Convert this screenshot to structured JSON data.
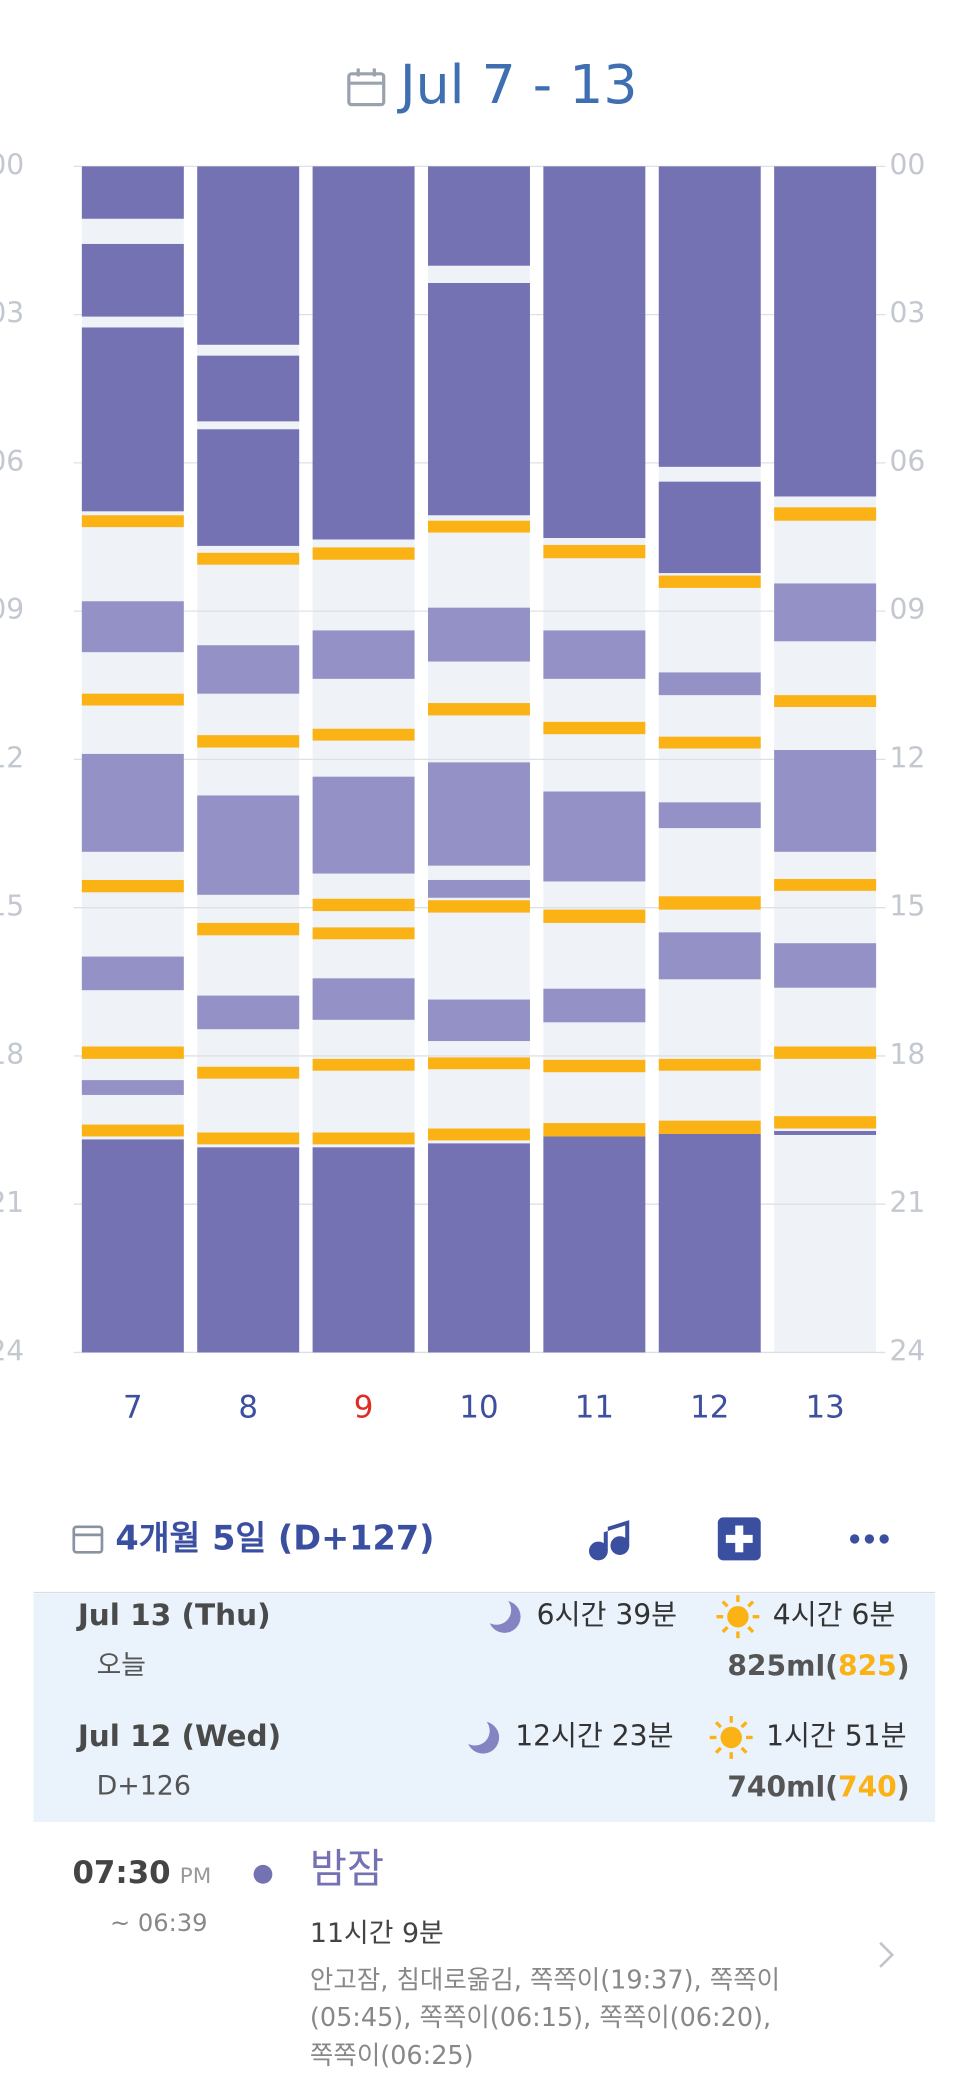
{
  "chart_data": {
    "type": "timeline",
    "title": "Jul 7 - 13",
    "categories": [
      "7",
      "8",
      "9",
      "10",
      "11",
      "12",
      "13"
    ],
    "category_colors": [
      "#3d4f9f",
      "#3d4f9f",
      "#e02b27",
      "#3d4f9f",
      "#3d4f9f",
      "#3d4f9f",
      "#3d4f9f"
    ],
    "ylim": [
      0,
      24
    ],
    "y_inverted": true,
    "yticks": [
      {
        "value": 0,
        "label": "00"
      },
      {
        "value": 3,
        "label": "03"
      },
      {
        "value": 6,
        "label": "06"
      },
      {
        "value": 9,
        "label": "09"
      },
      {
        "value": 12,
        "label": "12"
      },
      {
        "value": 15,
        "label": "15"
      },
      {
        "value": 18,
        "label": "18"
      },
      {
        "value": 21,
        "label": "21"
      },
      {
        "value": 24,
        "label": "24"
      }
    ],
    "grid": true,
    "colors": {
      "sleep": "#7472b3",
      "nap": "#9391c6",
      "feed": "#fbb214",
      "background": "#eff3f7"
    },
    "days": [
      {
        "sleep": [
          [
            0,
            1.06
          ],
          [
            1.57,
            3.04
          ],
          [
            3.26,
            6.98
          ],
          [
            19.69,
            24
          ]
        ],
        "nap": [
          [
            8.8,
            9.83
          ],
          [
            11.89,
            13.87
          ],
          [
            15.99,
            16.67
          ],
          [
            18.49,
            18.79
          ]
        ],
        "feed": [
          [
            7.06,
            7.3
          ],
          [
            10.67,
            10.91
          ],
          [
            14.44,
            14.69
          ],
          [
            17.81,
            18.06
          ],
          [
            19.39,
            19.63
          ]
        ]
      },
      {
        "sleep": [
          [
            0,
            3.61
          ],
          [
            3.83,
            5.16
          ],
          [
            5.32,
            7.68
          ],
          [
            19.85,
            24
          ]
        ],
        "nap": [
          [
            9.69,
            10.67
          ],
          [
            12.73,
            14.74
          ],
          [
            16.78,
            17.46
          ]
        ],
        "feed": [
          [
            7.82,
            8.06
          ],
          [
            11.51,
            11.76
          ],
          [
            15.31,
            15.56
          ],
          [
            18.22,
            18.46
          ],
          [
            19.55,
            19.79
          ]
        ]
      },
      {
        "sleep": [
          [
            0,
            7.55
          ],
          [
            19.85,
            24
          ]
        ],
        "nap": [
          [
            9.39,
            10.37
          ],
          [
            12.35,
            14.31
          ],
          [
            16.43,
            17.27
          ]
        ],
        "feed": [
          [
            7.71,
            7.96
          ],
          [
            11.38,
            11.62
          ],
          [
            14.82,
            15.07
          ],
          [
            15.4,
            15.64
          ],
          [
            18.06,
            18.3
          ],
          [
            19.55,
            19.79
          ]
        ]
      },
      {
        "sleep": [
          [
            0,
            2.01
          ],
          [
            2.36,
            7.06
          ],
          [
            19.77,
            24
          ]
        ],
        "nap": [
          [
            8.93,
            10.02
          ],
          [
            12.06,
            14.15
          ],
          [
            14.44,
            14.8
          ],
          [
            16.86,
            17.7
          ]
        ],
        "feed": [
          [
            7.17,
            7.41
          ],
          [
            10.86,
            11.11
          ],
          [
            14.85,
            15.1
          ],
          [
            18.03,
            18.27
          ],
          [
            19.47,
            19.71
          ]
        ]
      },
      {
        "sleep": [
          [
            0,
            7.52
          ],
          [
            19.63,
            24
          ]
        ],
        "nap": [
          [
            9.39,
            10.37
          ],
          [
            12.65,
            14.47
          ],
          [
            16.64,
            17.32
          ]
        ],
        "feed": [
          [
            7.66,
            7.93
          ],
          [
            11.24,
            11.49
          ],
          [
            15.04,
            15.31
          ],
          [
            18.08,
            18.33
          ],
          [
            19.36,
            19.63
          ]
        ]
      },
      {
        "sleep": [
          [
            0,
            6.08
          ],
          [
            6.38,
            8.23
          ],
          [
            19.58,
            24
          ]
        ],
        "nap": [
          [
            10.24,
            10.7
          ],
          [
            12.87,
            13.39
          ],
          [
            15.5,
            16.45
          ]
        ],
        "feed": [
          [
            8.28,
            8.53
          ],
          [
            11.54,
            11.78
          ],
          [
            14.77,
            15.04
          ],
          [
            18.06,
            18.3
          ],
          [
            19.31,
            19.58
          ]
        ]
      },
      {
        "sleep": [
          [
            0,
            6.68
          ],
          [
            19.52,
            19.6
          ]
        ],
        "nap": [
          [
            8.44,
            9.61
          ],
          [
            11.81,
            13.87
          ],
          [
            15.72,
            16.62
          ]
        ],
        "feed": [
          [
            6.9,
            7.17
          ],
          [
            10.7,
            10.94
          ],
          [
            14.42,
            14.66
          ],
          [
            17.81,
            18.06
          ],
          [
            19.22,
            19.47
          ]
        ]
      }
    ]
  },
  "summary_header": {
    "title": "4개월 5일 (D+127)"
  },
  "day_cards": [
    {
      "date": "Jul 13 (Thu)",
      "sub": "오늘",
      "night_sleep": "6시간 39분",
      "day_sleep": "4시간 6분",
      "total_parts": [
        "825ml(",
        "825",
        ")"
      ]
    },
    {
      "date": "Jul 12 (Wed)",
      "sub": "D+126",
      "night_sleep": "12시간 23분",
      "day_sleep": "1시간 51분",
      "total_parts": [
        "740ml(",
        "740",
        ")"
      ]
    }
  ],
  "entry": {
    "time": "07:30",
    "ampm": "PM",
    "end": "~ 06:39",
    "title": "밤잠",
    "duration": "11시간 9분",
    "notes": [
      "안고잠, 침대로옮김, 쪽쪽이(19:37), 쪽쪽이",
      "(05:45), 쪽쪽이(06:15), 쪽쪽이(06:20),",
      "쪽쪽이(06:25)"
    ]
  }
}
